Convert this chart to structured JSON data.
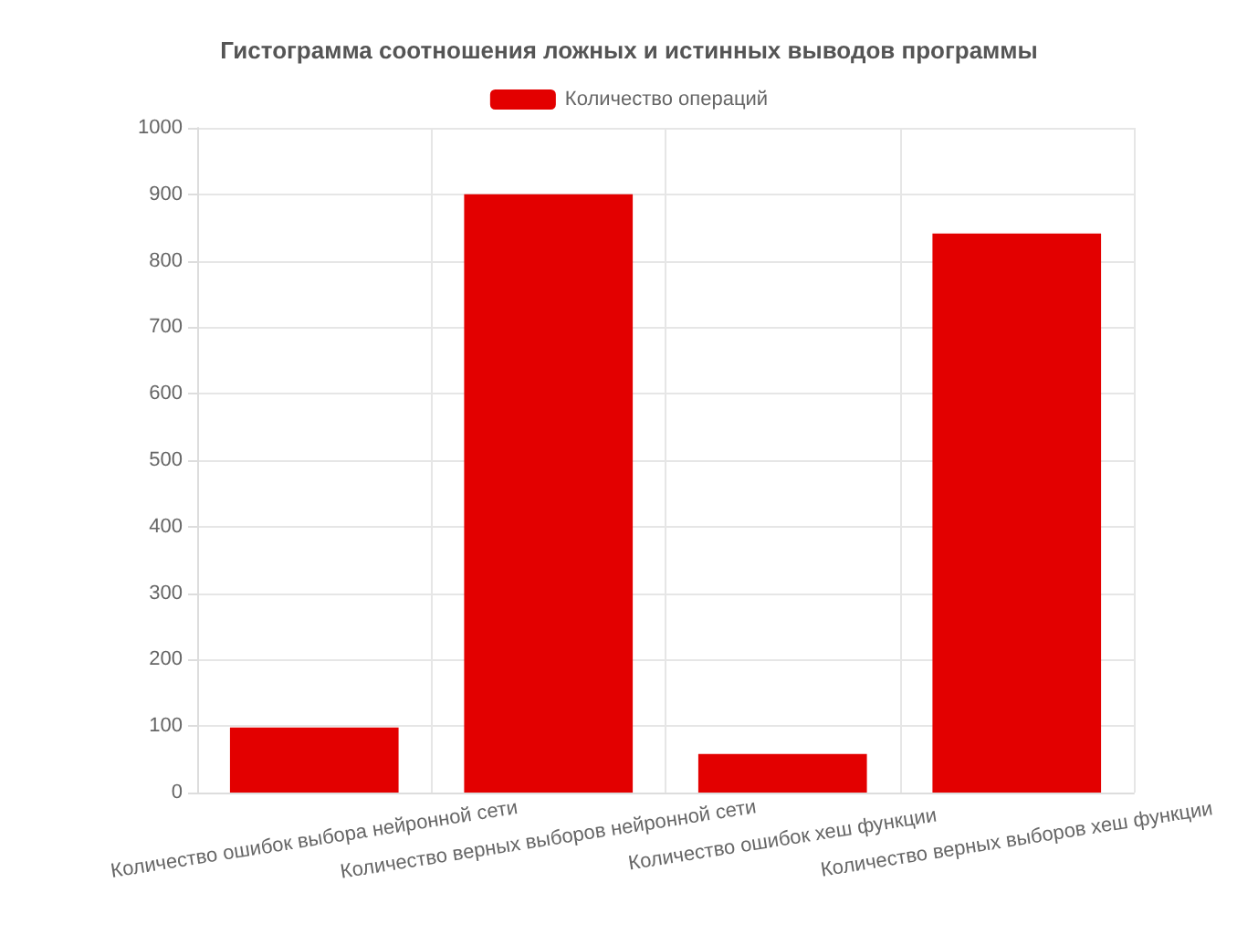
{
  "chart_data": {
    "type": "bar",
    "title": "Гистограмма соотношения ложных и истинных выводов программы",
    "categories": [
      "Количество ошибок выбора нейронной сети",
      "Количество верных выборов нейронной сети",
      "Количество ошибок хеш функции",
      "Количество верных выборов хеш функции"
    ],
    "series": [
      {
        "name": "Количество операций",
        "color": "#e30000",
        "values": [
          98,
          900,
          58,
          841
        ]
      }
    ],
    "ylim": [
      0,
      1000
    ],
    "yticks": [
      0,
      100,
      200,
      300,
      400,
      500,
      600,
      700,
      800,
      900,
      1000
    ],
    "grid": true,
    "legend": "top"
  }
}
